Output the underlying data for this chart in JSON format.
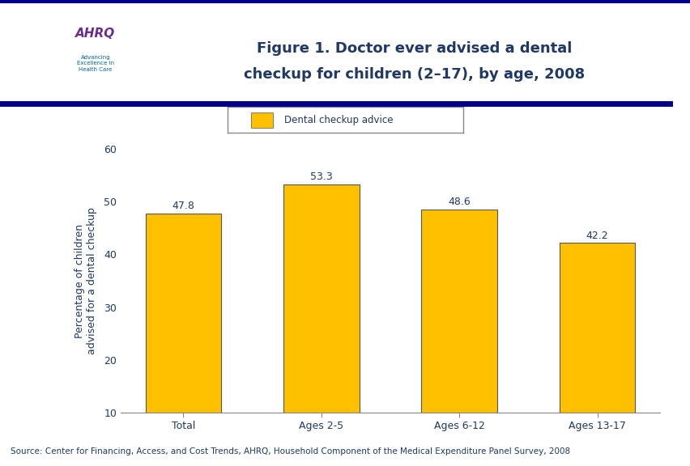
{
  "categories": [
    "Total",
    "Ages 2-5",
    "Ages 6-12",
    "Ages 13-17"
  ],
  "values": [
    47.8,
    53.3,
    48.6,
    42.2
  ],
  "bar_color": "#FFC000",
  "bar_edge_color": "#555555",
  "title_line1": "Figure 1. Doctor ever advised a dental",
  "title_line2": "checkup for children (2–17), by age, 2008",
  "title_color": "#1F3864",
  "ylabel": "Percentage of children\nadvised for a dental checkup",
  "ylabel_color": "#1F3864",
  "tick_color": "#1F3864",
  "legend_label": "Dental checkup advice",
  "ylim_min": 10,
  "ylim_max": 60,
  "yticks": [
    10,
    20,
    30,
    40,
    50,
    60
  ],
  "value_label_color": "#1F3864",
  "value_label_fontsize": 9,
  "axis_label_fontsize": 9,
  "tick_label_fontsize": 9,
  "title_fontsize": 13,
  "source_text": "Source: Center for Financing, Access, and Cost Trends, AHRQ, Household Component of the Medical Expenditure Panel Survey, 2008",
  "source_fontsize": 7.5,
  "source_color": "#1F3864",
  "background_color": "#FFFFFF",
  "header_bar_color": "#00008B",
  "divider_color": "#00008B",
  "legend_edge_color": "#888888",
  "spine_color": "#888888"
}
